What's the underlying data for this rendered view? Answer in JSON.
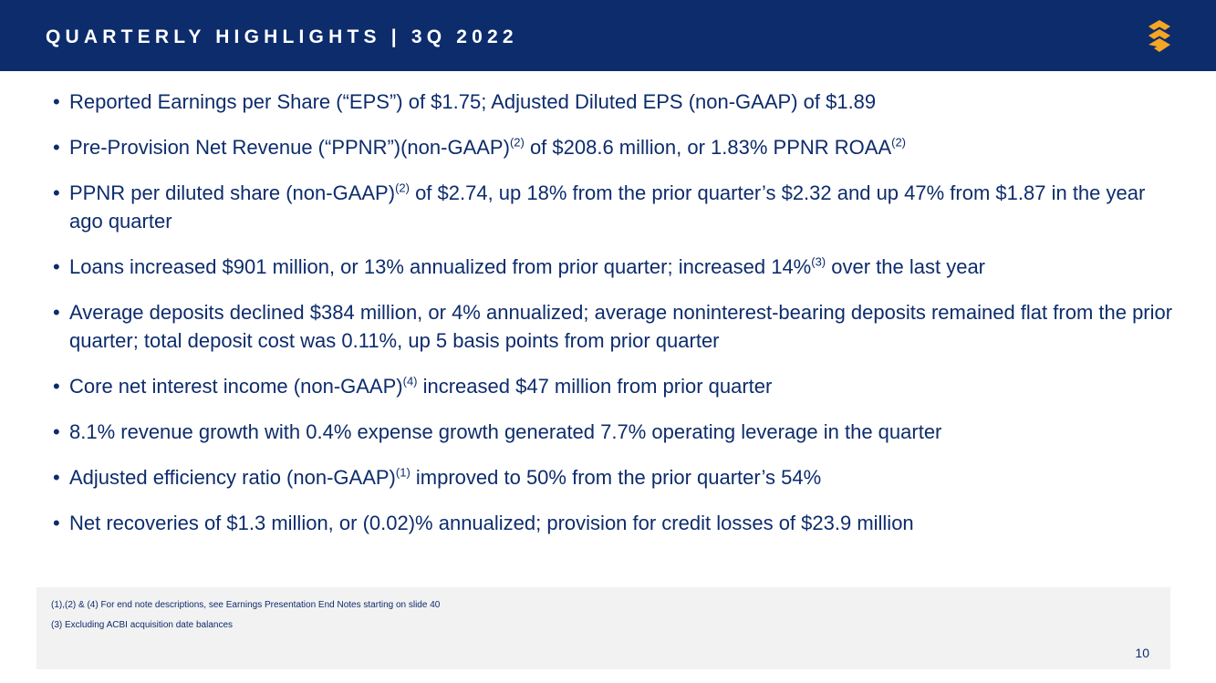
{
  "header": {
    "title": "QUARTERLY HIGHLIGHTS | 3Q 2022",
    "logo": "stacked-chevron-logo",
    "colors": {
      "navy": "#0d2c6c",
      "gold": "#f5a623"
    }
  },
  "bullets": [
    {
      "parts": [
        {
          "t": "Reported Earnings per Share (“EPS”) of $1.75; Adjusted Diluted EPS (non-GAAP) of $1.89"
        }
      ]
    },
    {
      "parts": [
        {
          "t": "Pre-Provision Net Revenue (“PPNR”)(non-GAAP)"
        },
        {
          "s": "(2)"
        },
        {
          "t": " of $208.6 million, or 1.83% PPNR ROAA"
        },
        {
          "s": "(2)"
        }
      ]
    },
    {
      "parts": [
        {
          "t": "PPNR per diluted share (non-GAAP)"
        },
        {
          "s": "(2)"
        },
        {
          "t": " of $2.74, up 18% from the prior quarter’s $2.32 and up 47% from $1.87 in the year ago quarter"
        }
      ]
    },
    {
      "parts": [
        {
          "t": "Loans increased $901 million, or 13% annualized from prior quarter; increased 14%"
        },
        {
          "s": "(3)"
        },
        {
          "t": " over the last year"
        }
      ]
    },
    {
      "parts": [
        {
          "t": "Average deposits declined $384 million, or 4% annualized; average noninterest-bearing deposits remained flat from the prior quarter; total deposit cost was 0.11%, up 5 basis points from prior quarter"
        }
      ]
    },
    {
      "parts": [
        {
          "t": "Core net interest income (non-GAAP)"
        },
        {
          "s": "(4)"
        },
        {
          "t": " increased $47 million from prior quarter"
        }
      ]
    },
    {
      "parts": [
        {
          "t": "8.1% revenue growth with 0.4% expense growth generated 7.7% operating leverage in the quarter"
        }
      ]
    },
    {
      "parts": [
        {
          "t": "Adjusted efficiency ratio (non-GAAP)"
        },
        {
          "s": "(1)"
        },
        {
          "t": " improved to 50% from the prior quarter’s 54%"
        }
      ]
    },
    {
      "parts": [
        {
          "t": "Net recoveries of $1.3 million, or (0.02)% annualized; provision for credit losses of $23.9 million"
        }
      ]
    }
  ],
  "footnotes": {
    "line1": "(1),(2) & (4) For end note descriptions, see Earnings Presentation End Notes starting on slide 40",
    "line2": "(3)   Excluding ACBI acquisition date balances"
  },
  "page_number": "10"
}
